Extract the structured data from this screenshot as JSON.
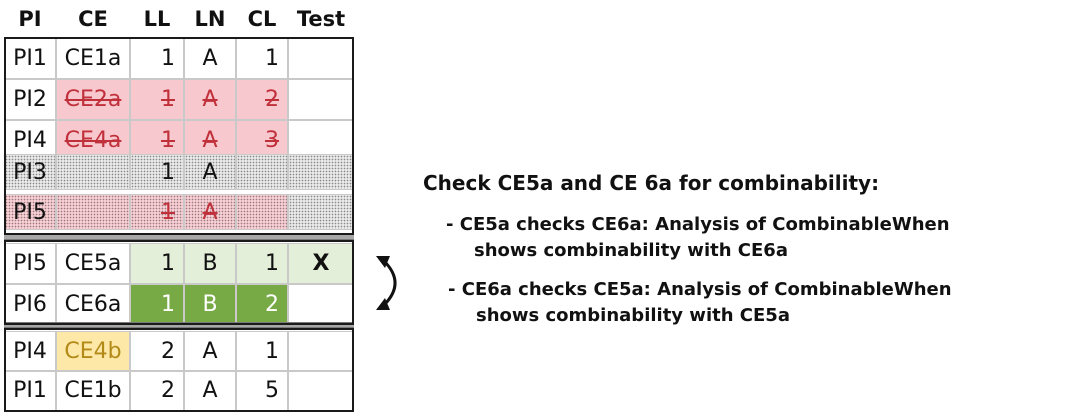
{
  "table": {
    "headers": {
      "pi": "PI",
      "ce": "CE",
      "ll": "LL",
      "ln": "LN",
      "cl": "CL",
      "test": "Test"
    },
    "rows": [
      {
        "pi": "PI1",
        "ce": "CE1a",
        "ll": "1",
        "ln": "A",
        "cl": "1",
        "test": "",
        "state": "normal"
      },
      {
        "pi": "PI2",
        "ce": "CE2a",
        "ll": "1",
        "ln": "A",
        "cl": "2",
        "test": "",
        "state": "struck"
      },
      {
        "pi": "PI4",
        "ce": "CE4a",
        "ll": "1",
        "ln": "A",
        "cl": "3",
        "test": "",
        "state": "struck"
      },
      {
        "pi": "PI3",
        "ce": "",
        "ll": "1",
        "ln": "A",
        "cl": "",
        "test": "",
        "state": "dotted"
      },
      {
        "pi": "PI5",
        "ce": "",
        "ll": "1",
        "ln": "A",
        "cl": "",
        "test": "",
        "state": "dotted-struck"
      },
      {
        "pi": "PI5",
        "ce": "CE5a",
        "ll": "1",
        "ln": "B",
        "cl": "1",
        "test": "X",
        "state": "light-green"
      },
      {
        "pi": "PI6",
        "ce": "CE6a",
        "ll": "1",
        "ln": "B",
        "cl": "2",
        "test": "",
        "state": "dark-green"
      },
      {
        "pi": "PI4",
        "ce": "CE4b",
        "ll": "2",
        "ln": "A",
        "cl": "1",
        "test": "",
        "state": "highlight-ce"
      },
      {
        "pi": "PI1",
        "ce": "CE1b",
        "ll": "2",
        "ln": "A",
        "cl": "5",
        "test": "",
        "state": "normal"
      }
    ]
  },
  "notes": {
    "heading": "Check CE5a and CE 6a for combinability:",
    "items": [
      {
        "line1": "- CE5a checks CE6a: Analysis of CombinableWhen",
        "line2": "shows combinability with CE6a"
      },
      {
        "line1": "- CE6a checks CE5a: Analysis of CombinableWhen",
        "line2": "shows combinability with CE5a"
      }
    ]
  },
  "icons": {
    "swap": "curved-double-arrow-icon"
  },
  "colors": {
    "pink": "#f8c8cf",
    "strike": "#c0303a",
    "light_green": "#e4efd9",
    "dark_green": "#77aa45",
    "yellow": "#fde8a8"
  }
}
